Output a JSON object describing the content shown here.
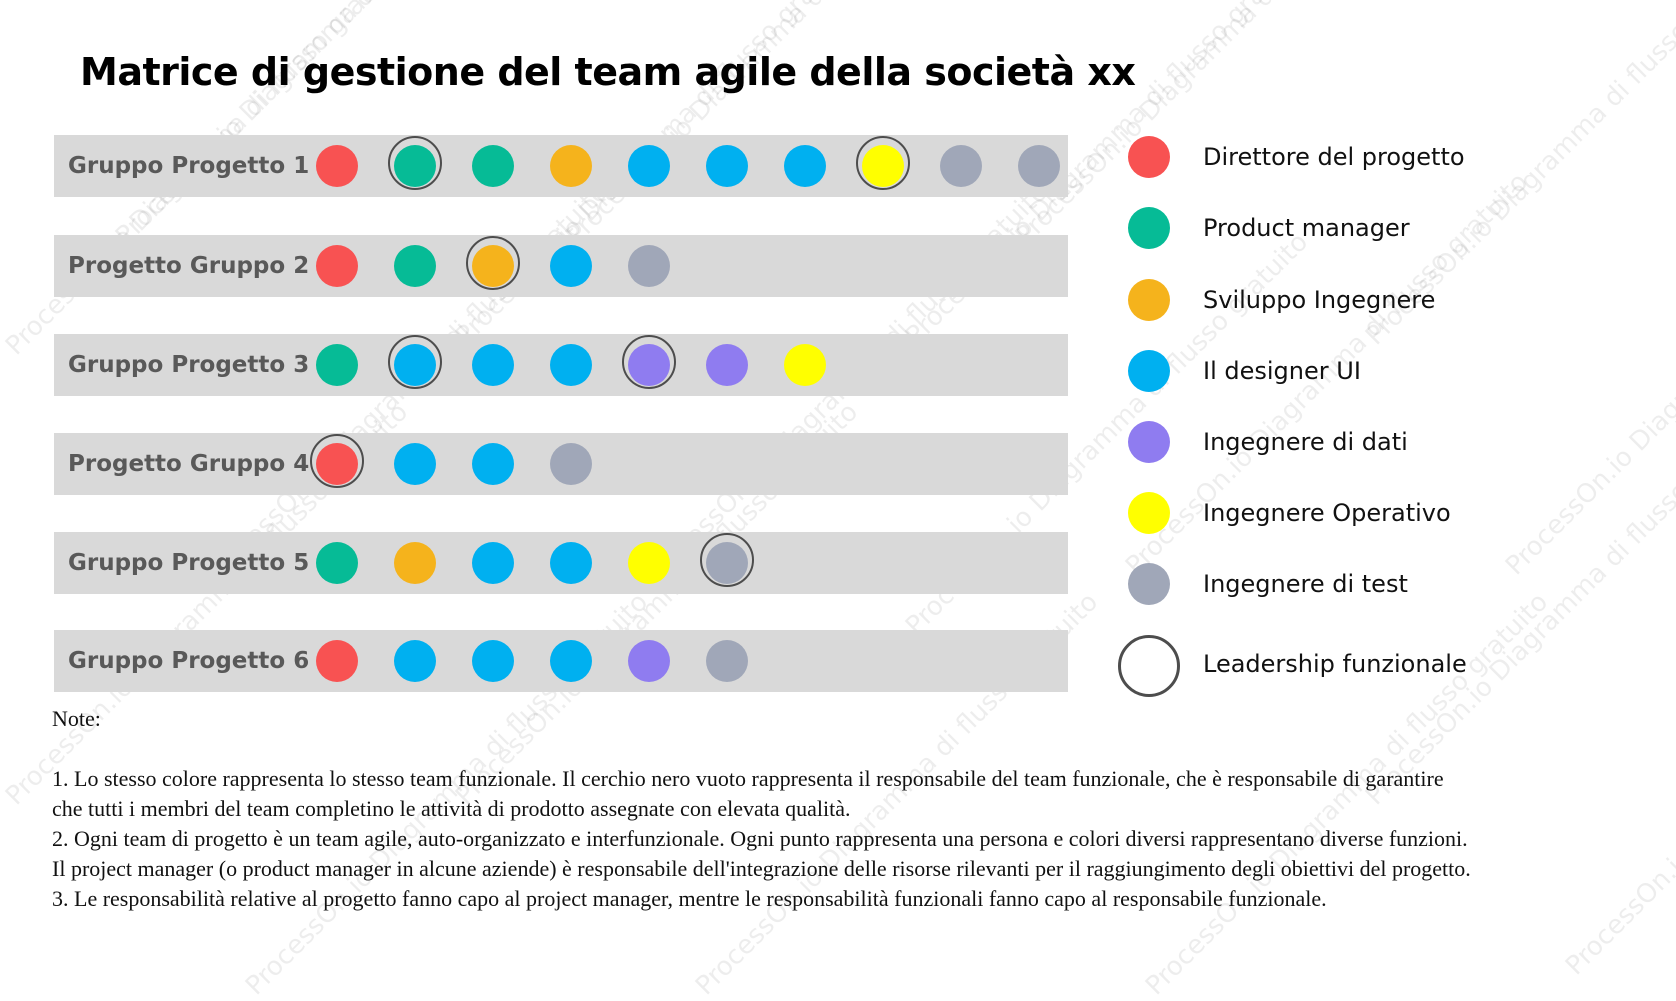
{
  "title": "Matrice di gestione del team agile della società xx",
  "colors": {
    "direttore": "#f85252",
    "product": "#06bb96",
    "sviluppo": "#f5b31c",
    "designer": "#00b0f0",
    "dati": "#8f7cf0",
    "operativo": "#ffff00",
    "test": "#a0a7b8"
  },
  "rows": [
    {
      "label": "Gruppo Progetto 1",
      "members": [
        {
          "role": "direttore",
          "leader": false
        },
        {
          "role": "product",
          "leader": true
        },
        {
          "role": "product",
          "leader": false
        },
        {
          "role": "sviluppo",
          "leader": false
        },
        {
          "role": "designer",
          "leader": false
        },
        {
          "role": "designer",
          "leader": false
        },
        {
          "role": "designer",
          "leader": false
        },
        {
          "role": "operativo",
          "leader": true
        },
        {
          "role": "test",
          "leader": false
        },
        {
          "role": "test",
          "leader": false
        }
      ]
    },
    {
      "label": "Progetto Gruppo 2",
      "members": [
        {
          "role": "direttore",
          "leader": false
        },
        {
          "role": "product",
          "leader": false
        },
        {
          "role": "sviluppo",
          "leader": true
        },
        {
          "role": "designer",
          "leader": false
        },
        {
          "role": "test",
          "leader": false
        }
      ]
    },
    {
      "label": "Gruppo Progetto 3",
      "members": [
        {
          "role": "product",
          "leader": false
        },
        {
          "role": "designer",
          "leader": true
        },
        {
          "role": "designer",
          "leader": false
        },
        {
          "role": "designer",
          "leader": false
        },
        {
          "role": "dati",
          "leader": true
        },
        {
          "role": "dati",
          "leader": false
        },
        {
          "role": "operativo",
          "leader": false
        }
      ]
    },
    {
      "label": "Progetto Gruppo 4",
      "members": [
        {
          "role": "direttore",
          "leader": true
        },
        {
          "role": "designer",
          "leader": false
        },
        {
          "role": "designer",
          "leader": false
        },
        {
          "role": "test",
          "leader": false
        }
      ]
    },
    {
      "label": "Gruppo Progetto 5",
      "members": [
        {
          "role": "product",
          "leader": false
        },
        {
          "role": "sviluppo",
          "leader": false
        },
        {
          "role": "designer",
          "leader": false
        },
        {
          "role": "designer",
          "leader": false
        },
        {
          "role": "operativo",
          "leader": false
        },
        {
          "role": "test",
          "leader": true
        }
      ]
    },
    {
      "label": "Gruppo Progetto 6",
      "members": [
        {
          "role": "direttore",
          "leader": false
        },
        {
          "role": "designer",
          "leader": false
        },
        {
          "role": "designer",
          "leader": false
        },
        {
          "role": "designer",
          "leader": false
        },
        {
          "role": "dati",
          "leader": false
        },
        {
          "role": "test",
          "leader": false
        }
      ]
    }
  ],
  "legend": [
    {
      "role": "direttore",
      "label": "Direttore del progetto"
    },
    {
      "role": "product",
      "label": "Product manager"
    },
    {
      "role": "sviluppo",
      "label": "Sviluppo Ingegnere"
    },
    {
      "role": "designer",
      "label": "Il designer UI"
    },
    {
      "role": "dati",
      "label": "Ingegnere di dati"
    },
    {
      "role": "operativo",
      "label": "Ingegnere Operativo"
    },
    {
      "role": "test",
      "label": "Ingegnere di test"
    },
    {
      "role": "leader",
      "label": "Leadership funzionale"
    }
  ],
  "notes": {
    "title": "Note:",
    "lines": [
      "1. Lo stesso colore rappresenta lo stesso team funzionale. Il cerchio nero vuoto rappresenta il responsabile del team funzionale, che è responsabile di garantire che tutti i membri del team completino le attività di prodotto assegnate con elevata qualità.",
      "2. Ogni team di progetto è un team agile, auto-organizzato e interfunzionale. Ogni punto rappresenta una persona e colori diversi rappresentano diverse funzioni. Il project manager (o product manager in alcune aziende) è responsabile dell'integrazione delle risorse rilevanti per il raggiungimento degli obiettivi del progetto.",
      "3. Le responsabilità relative al progetto fanno capo al project manager, mentre le responsabilità funzionali fanno capo al responsabile funzionale."
    ]
  },
  "watermark": "ProcessOn.io Diagramma di flusso gratuito"
}
